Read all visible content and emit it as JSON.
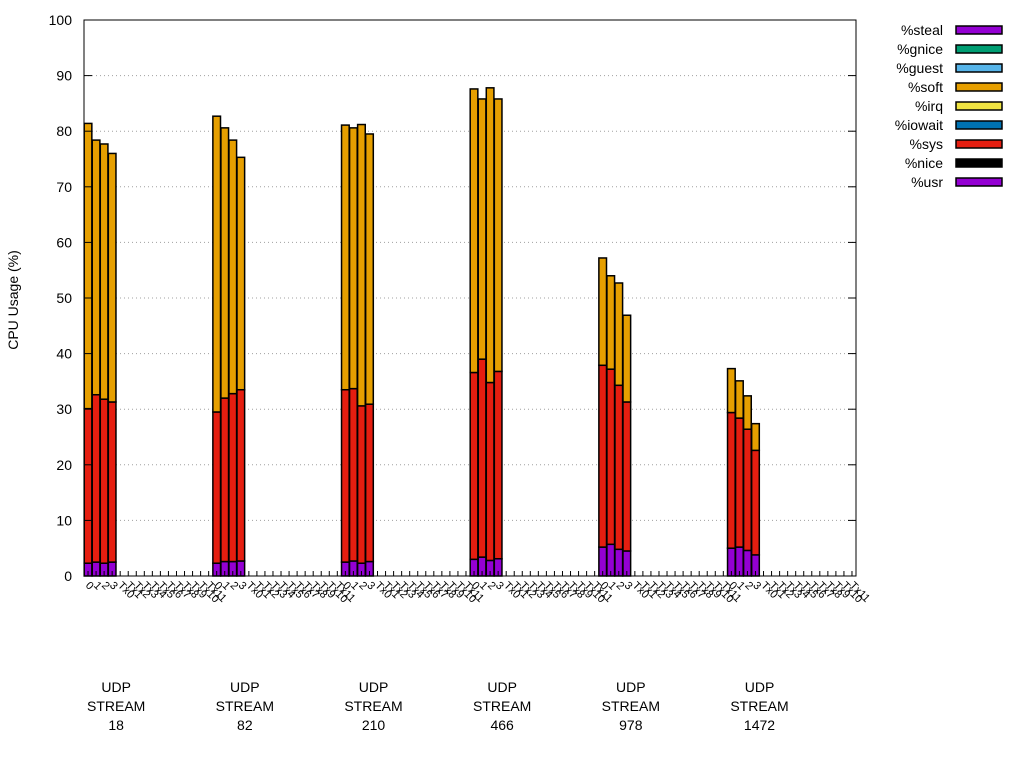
{
  "chart_data": {
    "type": "bar",
    "stacked": true,
    "ylabel": "CPU Usage (%)",
    "ylim": [
      0,
      100
    ],
    "yticks": [
      0,
      10,
      20,
      30,
      40,
      50,
      60,
      70,
      80,
      90,
      100
    ],
    "grid": "horizontal-dotted",
    "legend_position": "top-right",
    "groups": [
      {
        "label_lines": [
          "UDP",
          "STREAM",
          "18"
        ],
        "x_ticks": [
          "0",
          "1",
          "2",
          "3",
          "Tx0",
          "Tx1",
          "Tx2",
          "Tx3",
          "Tx4",
          "Tx5",
          "Tx6",
          "Tx7",
          "Tx8",
          "Tx9",
          "Tx10",
          "Tx11"
        ],
        "bars": [
          {
            "usr": 2.3,
            "sys": 27.8,
            "soft": 51.3
          },
          {
            "usr": 2.5,
            "sys": 30.1,
            "soft": 45.8
          },
          {
            "usr": 2.3,
            "sys": 29.5,
            "soft": 45.9
          },
          {
            "usr": 2.5,
            "sys": 28.8,
            "soft": 44.7
          }
        ]
      },
      {
        "label_lines": [
          "UDP",
          "STREAM",
          "82"
        ],
        "x_ticks": [
          "0",
          "1",
          "2",
          "3",
          "Tx0",
          "Tx1",
          "Tx2",
          "Tx3",
          "Tx4",
          "Tx5",
          "Tx6",
          "Tx7",
          "Tx8",
          "Tx9",
          "Tx10",
          "Tx11"
        ],
        "bars": [
          {
            "usr": 2.3,
            "sys": 27.2,
            "soft": 53.2
          },
          {
            "usr": 2.6,
            "sys": 29.4,
            "soft": 48.6
          },
          {
            "usr": 2.6,
            "sys": 30.2,
            "soft": 45.6
          },
          {
            "usr": 2.7,
            "sys": 30.8,
            "soft": 41.8
          }
        ]
      },
      {
        "label_lines": [
          "UDP",
          "STREAM",
          "210"
        ],
        "x_ticks": [
          "0",
          "1",
          "2",
          "3",
          "Tx0",
          "Tx1",
          "Tx2",
          "Tx3",
          "Tx4",
          "Tx5",
          "Tx6",
          "Tx7",
          "Tx8",
          "Tx9",
          "Tx10",
          "Tx11"
        ],
        "bars": [
          {
            "usr": 2.5,
            "sys": 31.0,
            "soft": 47.6
          },
          {
            "usr": 2.7,
            "sys": 31.0,
            "soft": 46.9
          },
          {
            "usr": 2.3,
            "sys": 28.3,
            "soft": 50.6
          },
          {
            "usr": 2.6,
            "sys": 28.3,
            "soft": 48.6
          }
        ]
      },
      {
        "label_lines": [
          "UDP",
          "STREAM",
          "466"
        ],
        "x_ticks": [
          "0",
          "1",
          "2",
          "3",
          "Tx0",
          "Tx1",
          "Tx2",
          "Tx3",
          "Tx4",
          "Tx5",
          "Tx6",
          "Tx7",
          "Tx8",
          "Tx9",
          "Tx10",
          "Tx11"
        ],
        "bars": [
          {
            "usr": 3.0,
            "sys": 33.6,
            "soft": 51.0
          },
          {
            "usr": 3.4,
            "sys": 35.6,
            "soft": 46.8
          },
          {
            "usr": 2.8,
            "sys": 32.0,
            "soft": 53.0
          },
          {
            "usr": 3.1,
            "sys": 33.7,
            "soft": 49.0
          }
        ]
      },
      {
        "label_lines": [
          "UDP",
          "STREAM",
          "978"
        ],
        "x_ticks": [
          "0",
          "1",
          "2",
          "3",
          "Tx0",
          "Tx1",
          "Tx2",
          "Tx3",
          "Tx4",
          "Tx5",
          "Tx6",
          "Tx7",
          "Tx8",
          "Tx9",
          "Tx10",
          "Tx11"
        ],
        "bars": [
          {
            "usr": 5.2,
            "sys": 32.7,
            "soft": 19.3
          },
          {
            "usr": 5.7,
            "sys": 31.5,
            "soft": 16.8
          },
          {
            "usr": 4.8,
            "sys": 29.5,
            "soft": 18.4
          },
          {
            "usr": 4.5,
            "sys": 26.8,
            "soft": 15.6
          }
        ]
      },
      {
        "label_lines": [
          "UDP",
          "STREAM",
          "1472"
        ],
        "x_ticks": [
          "0",
          "1",
          "2",
          "3",
          "Tx0",
          "Tx1",
          "Tx2",
          "Tx3",
          "Tx4",
          "Tx5",
          "Tx6",
          "Tx7",
          "Tx8",
          "Tx9",
          "Tx10",
          "Tx11"
        ],
        "bars": [
          {
            "usr": 5.0,
            "sys": 24.4,
            "soft": 7.9
          },
          {
            "usr": 5.2,
            "sys": 23.2,
            "soft": 6.7
          },
          {
            "usr": 4.6,
            "sys": 21.8,
            "soft": 6.0
          },
          {
            "usr": 3.8,
            "sys": 18.8,
            "soft": 4.8
          }
        ]
      }
    ],
    "legend": [
      {
        "key": "steal",
        "label": "%steal",
        "color": "#9400d3"
      },
      {
        "key": "gnice",
        "label": "%gnice",
        "color": "#009e73"
      },
      {
        "key": "guest",
        "label": "%guest",
        "color": "#56b4e9"
      },
      {
        "key": "soft",
        "label": "%soft",
        "color": "#e69f00"
      },
      {
        "key": "irq",
        "label": "%irq",
        "color": "#f0e442"
      },
      {
        "key": "iowait",
        "label": "%iowait",
        "color": "#0072b2"
      },
      {
        "key": "sys",
        "label": "%sys",
        "color": "#e51e10"
      },
      {
        "key": "nice",
        "label": "%nice",
        "color": "#000000"
      },
      {
        "key": "usr",
        "label": "%usr",
        "color": "#9400d3"
      }
    ],
    "stack_order": [
      "usr",
      "nice",
      "sys",
      "iowait",
      "irq",
      "soft",
      "guest",
      "gnice",
      "steal"
    ]
  }
}
